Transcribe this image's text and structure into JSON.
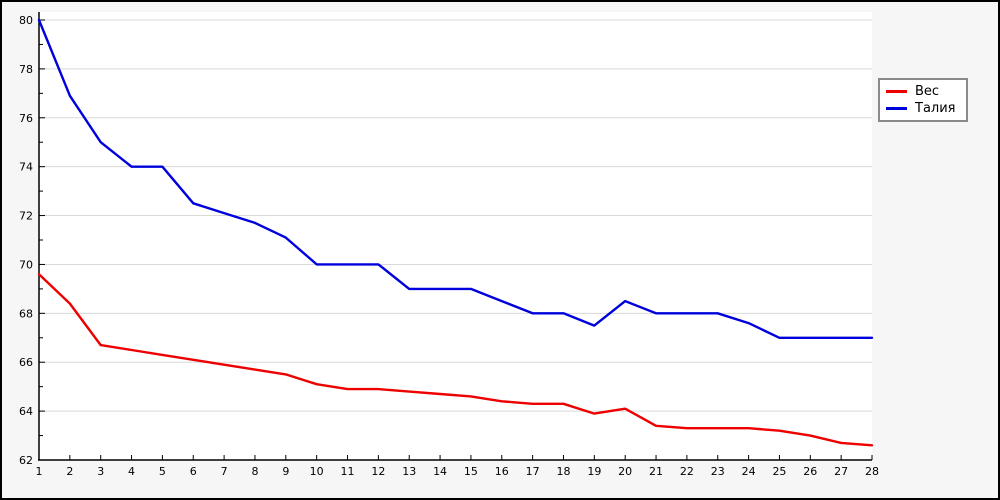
{
  "chart_data": {
    "type": "line",
    "x": [
      1,
      2,
      3,
      4,
      5,
      6,
      7,
      8,
      9,
      10,
      11,
      12,
      13,
      14,
      15,
      16,
      17,
      18,
      19,
      20,
      21,
      22,
      23,
      24,
      25,
      26,
      27,
      28
    ],
    "series": [
      {
        "name": "Вес",
        "color": "#ee0000",
        "values": [
          69.6,
          68.4,
          66.7,
          66.5,
          66.3,
          66.1,
          65.9,
          65.7,
          65.5,
          65.1,
          64.9,
          64.9,
          64.8,
          64.7,
          64.6,
          64.4,
          64.3,
          64.3,
          63.9,
          64.1,
          63.4,
          63.3,
          63.3,
          63.3,
          63.2,
          63.0,
          62.7,
          62.6
        ]
      },
      {
        "name": "Талия",
        "color": "#0000dd",
        "values": [
          80.0,
          76.9,
          75.0,
          74.0,
          74.0,
          72.5,
          72.1,
          71.7,
          71.1,
          70.0,
          70.0,
          70.0,
          69.0,
          69.0,
          69.0,
          68.5,
          68.0,
          68.0,
          67.5,
          68.5,
          68.0,
          68.0,
          68.0,
          67.6,
          67.0,
          67.0,
          67.0,
          67.0
        ]
      }
    ],
    "title": "",
    "xlabel": "",
    "ylabel": "",
    "xlim": [
      1,
      28
    ],
    "ylim": [
      62,
      80
    ],
    "ytick_step": 2,
    "yminor_step": 1,
    "ytick_labels": [
      "62",
      "64",
      "66",
      "68",
      "70",
      "72",
      "74",
      "76",
      "78",
      "80"
    ],
    "xtick_labels": [
      "1",
      "2",
      "3",
      "4",
      "5",
      "6",
      "7",
      "8",
      "9",
      "10",
      "11",
      "12",
      "13",
      "14",
      "15",
      "16",
      "17",
      "18",
      "19",
      "20",
      "21",
      "22",
      "23",
      "24",
      "25",
      "26",
      "27",
      "28"
    ],
    "grid": "horizontal",
    "legend_position": "outside-top-right"
  },
  "style": {
    "background": "#f6f6f6",
    "plot_background": "#ffffff",
    "grid_color": "#d9d9d9",
    "axis_color": "#000000",
    "tick_label_color": "#000000"
  }
}
